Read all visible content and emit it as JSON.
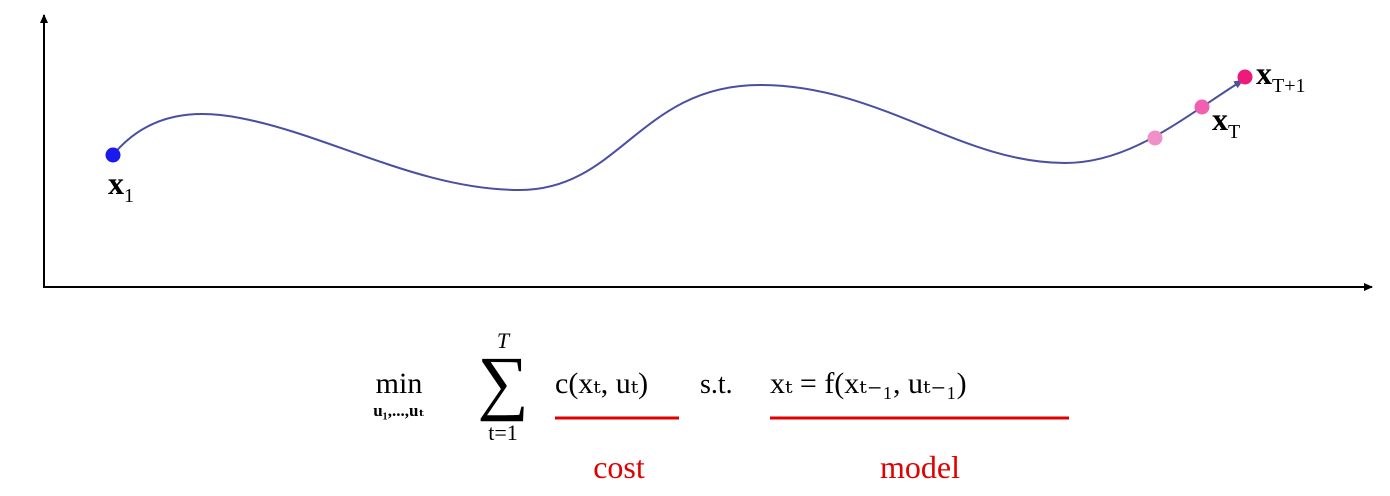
{
  "labels": {
    "start": {
      "base": "x",
      "sub": "1"
    },
    "last": {
      "base": "x",
      "sub": "T"
    },
    "next": {
      "base": "x",
      "sub": "T+1"
    }
  },
  "formula": {
    "min": "min",
    "min_sub": "u₁,...,uₜ",
    "sum": "∑",
    "sum_top": "T",
    "sum_bottom": "t=1",
    "cost_term": "c(xₜ, uₜ)",
    "st": "s.t.",
    "model_term": "xₜ = f(xₜ₋₁, uₜ₋₁)"
  },
  "annotations": {
    "cost": "cost",
    "model": "model"
  }
}
